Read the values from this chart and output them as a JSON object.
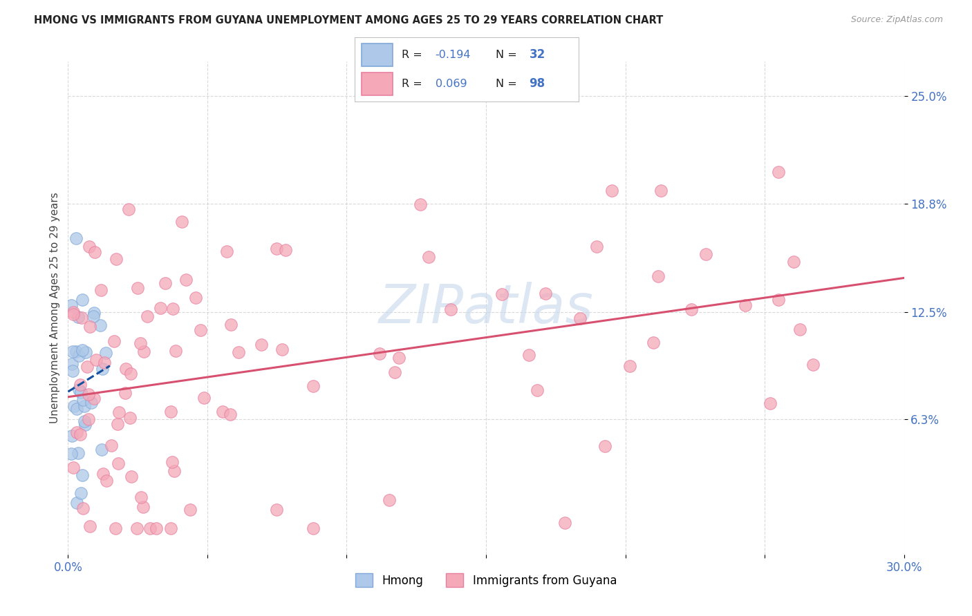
{
  "title": "HMONG VS IMMIGRANTS FROM GUYANA UNEMPLOYMENT AMONG AGES 25 TO 29 YEARS CORRELATION CHART",
  "source": "Source: ZipAtlas.com",
  "ylabel": "Unemployment Among Ages 25 to 29 years",
  "xlim": [
    0.0,
    0.3
  ],
  "ylim": [
    -0.015,
    0.27
  ],
  "xticks": [
    0.0,
    0.05,
    0.1,
    0.15,
    0.2,
    0.25,
    0.3
  ],
  "xticklabels": [
    "0.0%",
    "",
    "",
    "",
    "",
    "",
    "30.0%"
  ],
  "ytick_positions": [
    0.063,
    0.125,
    0.188,
    0.25
  ],
  "ytick_labels": [
    "6.3%",
    "12.5%",
    "18.8%",
    "25.0%"
  ],
  "hmong_color": "#adc8e8",
  "guyana_color": "#f4a8b8",
  "hmong_edge": "#80a8d8",
  "guyana_edge": "#e880a0",
  "trend_hmong_color": "#1850a0",
  "trend_guyana_color": "#d85070",
  "label_color": "#4472c4",
  "R_hmong": "-0.194",
  "N_hmong": "32",
  "R_guyana": "0.069",
  "N_guyana": "98",
  "watermark_color": "#c5d8ec",
  "legend_bottom": [
    "Hmong",
    "Immigrants from Guyana"
  ]
}
